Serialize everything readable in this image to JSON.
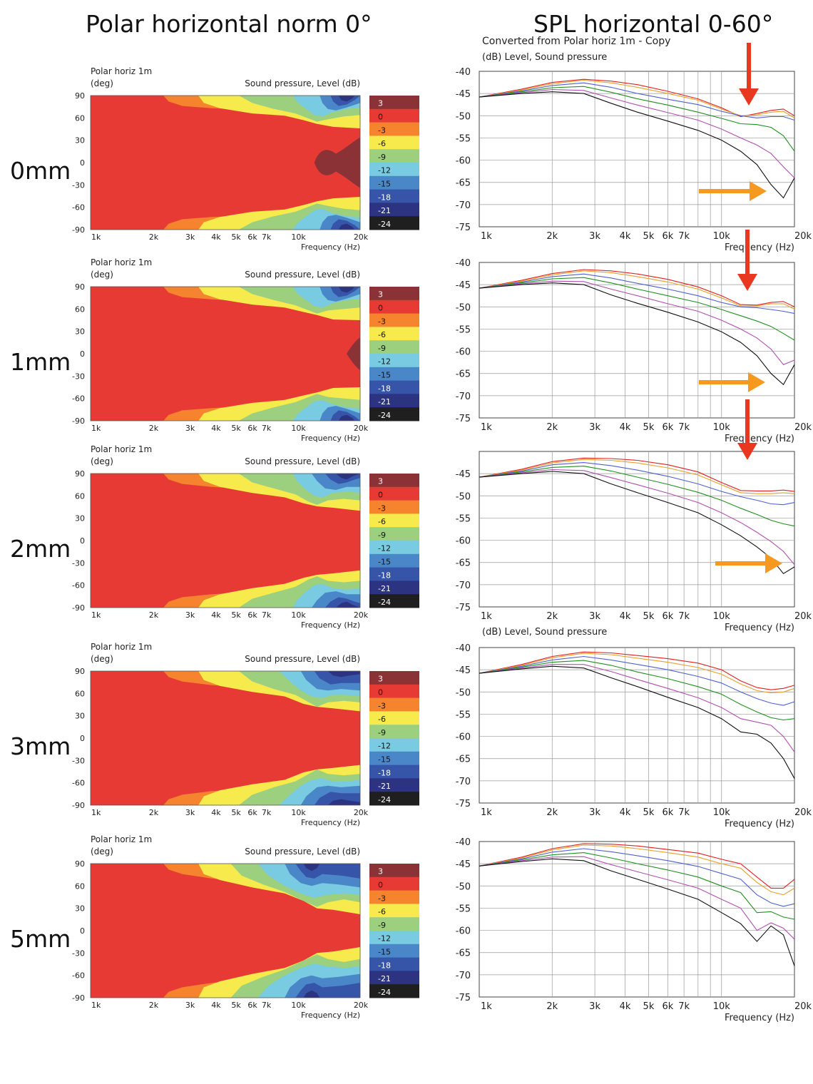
{
  "headings": {
    "left": "Polar horizontal norm 0°",
    "right": "SPL horizontal 0-60°"
  },
  "colorbar": {
    "levels": [
      "3",
      "0",
      "-3",
      "-6",
      "-9",
      "-12",
      "-15",
      "-18",
      "-21",
      "-24"
    ],
    "colors": [
      "#8b3236",
      "#e83a35",
      "#f6842e",
      "#f7ea4c",
      "#9ccf7e",
      "#78cbe0",
      "#4a87c8",
      "#3654a8",
      "#2c3380",
      "#1f1f1f"
    ]
  },
  "polar_common": {
    "title": "Polar horiz 1m",
    "unit": "(deg)",
    "legend": "Sound pressure, Level  (dB)",
    "xlabel": "Frequency  (Hz)"
  },
  "spl_common": {
    "xlabel": "Frequency  (Hz)"
  },
  "spl_header_row1": {
    "title": "Converted from Polar horiz 1m - Copy",
    "unit": "(dB)  Level, Sound pressure"
  },
  "spl_header_row4": {
    "unit": "(dB)  Level, Sound pressure"
  },
  "series_colors": [
    "#e02020",
    "#e8a028",
    "#5060d0",
    "#209020",
    "#b050b0",
    "#101010"
  ],
  "arrow_colors": {
    "vertical": "#e8381f",
    "horizontal": "#f59a1f"
  },
  "chart_data": [
    {
      "type": "heatmap",
      "row": "0mm",
      "yticks": [
        "90",
        "60",
        "30",
        "0",
        "-30",
        "-60",
        "-90"
      ],
      "xticks": [
        "1k",
        "2k",
        "3k",
        "4k",
        "5k",
        "6k",
        "7k",
        "10k",
        "20k"
      ],
      "z_levels": [
        3,
        0,
        -3,
        -6,
        -9,
        -12,
        -15,
        -18,
        -21,
        -24
      ]
    },
    {
      "type": "line",
      "row": "0mm",
      "title": "Converted from Polar horiz 1m - Copy",
      "ylabel": "(dB)  Level, Sound pressure",
      "xlabel": "Frequency  (Hz)",
      "ylim": [
        -75,
        -40
      ],
      "yticks": [
        "-40",
        "-45",
        "-50",
        "-55",
        "-60",
        "-65",
        "-70",
        "-75"
      ],
      "xticks": [
        "1k",
        "2k",
        "3k",
        "4k",
        "5k",
        "6k",
        "7k",
        "10k",
        "20k"
      ],
      "x": [
        1000,
        1500,
        2000,
        2700,
        3500,
        4500,
        6000,
        8000,
        10000,
        12000,
        14000,
        16000,
        18000,
        20000
      ],
      "series": [
        {
          "values": [
            -45.8,
            -44.0,
            -42.5,
            -41.8,
            -42.2,
            -43.0,
            -44.5,
            -46.2,
            -48.2,
            -50.2,
            -49.5,
            -48.8,
            -48.5,
            -50.0
          ]
        },
        {
          "values": [
            -45.8,
            -44.2,
            -42.8,
            -42.0,
            -42.6,
            -43.6,
            -45.0,
            -46.5,
            -48.5,
            -50.0,
            -49.8,
            -49.2,
            -49.0,
            -50.5
          ]
        },
        {
          "values": [
            -45.8,
            -44.4,
            -43.2,
            -42.6,
            -43.6,
            -45.0,
            -46.3,
            -47.5,
            -49.0,
            -50.0,
            -50.5,
            -50.2,
            -50.2,
            -51.0
          ]
        },
        {
          "values": [
            -45.8,
            -44.6,
            -43.7,
            -43.4,
            -44.7,
            -46.2,
            -47.6,
            -49.2,
            -50.6,
            -51.8,
            -52.0,
            -52.6,
            -54.5,
            -58.0
          ]
        },
        {
          "values": [
            -45.8,
            -44.8,
            -44.1,
            -44.3,
            -46.0,
            -47.6,
            -49.3,
            -51.0,
            -53.0,
            -55.0,
            -56.6,
            -58.5,
            -61.5,
            -64.0
          ]
        },
        {
          "values": [
            -45.8,
            -45.0,
            -44.6,
            -45.0,
            -47.2,
            -49.2,
            -51.2,
            -53.3,
            -55.5,
            -58.0,
            -61.0,
            -65.5,
            -68.5,
            -64.0
          ]
        }
      ]
    },
    {
      "type": "heatmap",
      "row": "1mm",
      "yticks": [
        "90",
        "60",
        "30",
        "0",
        "-30",
        "-60",
        "-90"
      ],
      "xticks": [
        "1k",
        "2k",
        "3k",
        "4k",
        "5k",
        "6k",
        "7k",
        "10k",
        "20k"
      ],
      "z_levels": [
        3,
        0,
        -3,
        -6,
        -9,
        -12,
        -15,
        -18,
        -21,
        -24
      ]
    },
    {
      "type": "line",
      "row": "1mm",
      "xlabel": "Frequency  (Hz)",
      "ylim": [
        -75,
        -40
      ],
      "yticks": [
        "-40",
        "-45",
        "-50",
        "-55",
        "-60",
        "-65",
        "-70",
        "-75"
      ],
      "xticks": [
        "1k",
        "2k",
        "3k",
        "4k",
        "5k",
        "6k",
        "7k",
        "10k",
        "20k"
      ],
      "x": [
        1000,
        1500,
        2000,
        2700,
        3500,
        4500,
        6000,
        8000,
        10000,
        12000,
        14000,
        16000,
        18000,
        20000
      ],
      "series": [
        {
          "values": [
            -45.8,
            -44.0,
            -42.5,
            -41.6,
            -41.9,
            -42.6,
            -43.8,
            -45.5,
            -47.5,
            -49.5,
            -49.6,
            -49.0,
            -48.8,
            -50.0
          ]
        },
        {
          "values": [
            -45.8,
            -44.2,
            -42.8,
            -41.9,
            -42.3,
            -43.2,
            -44.4,
            -46.0,
            -48.0,
            -49.8,
            -49.8,
            -49.3,
            -49.3,
            -50.5
          ]
        },
        {
          "values": [
            -45.8,
            -44.4,
            -43.2,
            -42.6,
            -43.5,
            -44.7,
            -46.0,
            -47.5,
            -49.0,
            -50.0,
            -50.2,
            -50.6,
            -51.0,
            -51.5
          ]
        },
        {
          "values": [
            -45.8,
            -44.6,
            -43.7,
            -43.4,
            -44.6,
            -46.0,
            -47.5,
            -49.0,
            -50.6,
            -52.0,
            -53.2,
            -54.4,
            -56.0,
            -57.5
          ]
        },
        {
          "values": [
            -45.8,
            -44.8,
            -44.2,
            -44.3,
            -46.0,
            -47.5,
            -49.3,
            -51.0,
            -53.0,
            -55.0,
            -57.0,
            -59.5,
            -63.0,
            -62.0
          ]
        },
        {
          "values": [
            -45.8,
            -45.0,
            -44.6,
            -45.0,
            -47.3,
            -49.2,
            -51.2,
            -53.4,
            -55.6,
            -58.0,
            -61.0,
            -65.0,
            -67.5,
            -63.0
          ]
        }
      ]
    },
    {
      "type": "heatmap",
      "row": "2mm",
      "yticks": [
        "90",
        "60",
        "30",
        "0",
        "-30",
        "-60",
        "-90"
      ],
      "xticks": [
        "1k",
        "2k",
        "3k",
        "4k",
        "5k",
        "6k",
        "7k",
        "10k",
        "20k"
      ],
      "z_levels": [
        3,
        0,
        -3,
        -6,
        -9,
        -12,
        -15,
        -18,
        -21,
        -24
      ]
    },
    {
      "type": "line",
      "row": "2mm",
      "xlabel": "Frequency  (Hz)",
      "ylim": [
        -75,
        -40
      ],
      "yticks": [
        "-45",
        "-50",
        "-55",
        "-60",
        "-65",
        "-70",
        "-75"
      ],
      "xticks": [
        "1k",
        "2k",
        "3k",
        "4k",
        "5k",
        "6k",
        "7k",
        "10k",
        "20k"
      ],
      "x": [
        1000,
        1500,
        2000,
        2700,
        3500,
        4500,
        6000,
        8000,
        10000,
        12000,
        14000,
        16000,
        18000,
        20000
      ],
      "series": [
        {
          "values": [
            -45.8,
            -44.0,
            -42.3,
            -41.5,
            -41.6,
            -42.0,
            -43.0,
            -44.6,
            -47.0,
            -48.8,
            -48.9,
            -48.9,
            -48.7,
            -49.0
          ]
        },
        {
          "values": [
            -45.8,
            -44.2,
            -42.6,
            -41.8,
            -42.0,
            -42.6,
            -43.7,
            -45.3,
            -47.5,
            -49.3,
            -49.5,
            -49.5,
            -49.3,
            -49.5
          ]
        },
        {
          "values": [
            -45.8,
            -44.4,
            -43.0,
            -42.5,
            -43.2,
            -44.2,
            -45.6,
            -47.3,
            -49.0,
            -50.2,
            -51.0,
            -51.8,
            -52.0,
            -51.5
          ]
        },
        {
          "values": [
            -45.8,
            -44.6,
            -43.6,
            -43.3,
            -44.4,
            -45.8,
            -47.4,
            -49.2,
            -51.0,
            -52.8,
            -54.2,
            -55.5,
            -56.3,
            -56.8
          ]
        },
        {
          "values": [
            -45.8,
            -44.8,
            -44.1,
            -44.3,
            -45.9,
            -47.5,
            -49.4,
            -51.5,
            -53.8,
            -56.0,
            -58.2,
            -60.3,
            -62.5,
            -65.5
          ]
        },
        {
          "values": [
            -45.8,
            -45.0,
            -44.5,
            -45.0,
            -47.3,
            -49.3,
            -51.5,
            -53.8,
            -56.5,
            -59.0,
            -61.5,
            -64.0,
            -67.5,
            -66.0
          ]
        }
      ]
    },
    {
      "type": "heatmap",
      "row": "3mm",
      "yticks": [
        "90",
        "60",
        "30",
        "0",
        "-30",
        "-60",
        "-90"
      ],
      "xticks": [
        "1k",
        "2k",
        "3k",
        "4k",
        "5k",
        "6k",
        "7k",
        "10k",
        "20k"
      ],
      "z_levels": [
        3,
        0,
        -3,
        -6,
        -9,
        -12,
        -15,
        -18,
        -21,
        -24
      ]
    },
    {
      "type": "line",
      "row": "3mm",
      "ylabel": "(dB)  Level, Sound pressure",
      "xlabel": "Frequency  (Hz)",
      "ylim": [
        -75,
        -40
      ],
      "yticks": [
        "-40",
        "-45",
        "-50",
        "-55",
        "-60",
        "-65",
        "-70",
        "-75"
      ],
      "xticks": [
        "1k",
        "2k",
        "3k",
        "4k",
        "5k",
        "6k",
        "7k",
        "10k",
        "20k"
      ],
      "x": [
        1000,
        1500,
        2000,
        2700,
        3500,
        4500,
        6000,
        8000,
        10000,
        12000,
        14000,
        16000,
        18000,
        20000
      ],
      "series": [
        {
          "values": [
            -45.8,
            -43.8,
            -42.0,
            -41.0,
            -41.2,
            -41.8,
            -42.5,
            -43.5,
            -45.0,
            -47.5,
            -49.0,
            -49.5,
            -49.2,
            -48.5
          ]
        },
        {
          "values": [
            -45.8,
            -44.0,
            -42.3,
            -41.3,
            -41.6,
            -42.4,
            -43.3,
            -44.5,
            -46.0,
            -48.2,
            -49.7,
            -50.2,
            -50.0,
            -49.2
          ]
        },
        {
          "values": [
            -45.8,
            -44.2,
            -42.8,
            -42.0,
            -42.8,
            -43.8,
            -45.0,
            -46.5,
            -48.0,
            -50.0,
            -51.5,
            -52.5,
            -53.0,
            -52.2
          ]
        },
        {
          "values": [
            -45.8,
            -44.4,
            -43.3,
            -42.9,
            -44.0,
            -45.5,
            -47.0,
            -48.8,
            -50.5,
            -52.8,
            -54.5,
            -55.8,
            -56.3,
            -56.0
          ]
        },
        {
          "values": [
            -45.8,
            -44.6,
            -43.8,
            -43.8,
            -45.4,
            -47.2,
            -49.2,
            -51.3,
            -53.5,
            -56.0,
            -56.8,
            -57.5,
            -60.0,
            -63.5
          ]
        },
        {
          "values": [
            -45.8,
            -44.8,
            -44.2,
            -44.6,
            -46.8,
            -48.8,
            -51.2,
            -53.5,
            -56.0,
            -59.0,
            -59.5,
            -61.5,
            -65.0,
            -69.5
          ]
        }
      ]
    },
    {
      "type": "heatmap",
      "row": "5mm",
      "yticks": [
        "90",
        "60",
        "30",
        "0",
        "-30",
        "-60",
        "-90"
      ],
      "xticks": [
        "1k",
        "2k",
        "3k",
        "4k",
        "5k",
        "6k",
        "7k",
        "10k",
        "20k"
      ],
      "z_levels": [
        3,
        0,
        -3,
        -6,
        -9,
        -12,
        -15,
        -18,
        -21,
        -24
      ]
    },
    {
      "type": "line",
      "row": "5mm",
      "xlabel": "Frequency  (Hz)",
      "ylim": [
        -75,
        -40
      ],
      "yticks": [
        "-40",
        "-45",
        "-50",
        "-55",
        "-60",
        "-65",
        "-70",
        "-75"
      ],
      "xticks": [
        "1k",
        "2k",
        "3k",
        "4k",
        "5k",
        "6k",
        "7k",
        "10k",
        "20k"
      ],
      "x": [
        1000,
        1500,
        2000,
        2700,
        3500,
        4500,
        6000,
        8000,
        10000,
        12000,
        14000,
        16000,
        18000,
        20000
      ],
      "series": [
        {
          "values": [
            -45.5,
            -43.5,
            -41.6,
            -40.5,
            -40.6,
            -41.0,
            -41.8,
            -42.6,
            -44.0,
            -45.0,
            -48.0,
            -50.5,
            -50.5,
            -48.5
          ]
        },
        {
          "values": [
            -45.5,
            -43.7,
            -41.9,
            -40.8,
            -41.0,
            -41.6,
            -42.5,
            -43.5,
            -45.0,
            -46.0,
            -49.2,
            -51.3,
            -52.0,
            -50.5
          ]
        },
        {
          "values": [
            -45.5,
            -43.9,
            -42.4,
            -41.6,
            -42.3,
            -43.2,
            -44.3,
            -45.6,
            -47.2,
            -48.5,
            -52.0,
            -53.8,
            -54.6,
            -54.0
          ]
        },
        {
          "values": [
            -45.5,
            -44.1,
            -43.0,
            -42.5,
            -43.7,
            -45.0,
            -46.4,
            -48.0,
            -50.0,
            -51.5,
            -56.0,
            -55.8,
            -57.0,
            -57.5
          ]
        },
        {
          "values": [
            -45.5,
            -44.3,
            -43.5,
            -43.4,
            -45.2,
            -46.8,
            -48.6,
            -50.5,
            -53.0,
            -55.0,
            -60.0,
            -58.3,
            -59.5,
            -62.0
          ]
        },
        {
          "values": [
            -45.5,
            -44.5,
            -43.9,
            -44.3,
            -46.6,
            -48.5,
            -50.7,
            -53.0,
            -56.0,
            -58.5,
            -62.5,
            -59.0,
            -61.0,
            -68.0
          ]
        }
      ]
    }
  ],
  "rows": [
    {
      "label": "0mm",
      "polar_top": 90,
      "spl_top": 60,
      "show_polar_header": true,
      "spl_header": "row1"
    },
    {
      "label": "1mm",
      "polar_top": 358,
      "spl_top": 328,
      "show_polar_header": true
    },
    {
      "label": "2mm",
      "polar_top": 620,
      "spl_top": 593,
      "show_polar_header": true
    },
    {
      "label": "3mm",
      "polar_top": 897,
      "spl_top": 868,
      "show_polar_header": true,
      "spl_header": "row4"
    },
    {
      "label": "5mm",
      "polar_top": 1167,
      "spl_top": 1140,
      "show_polar_header": true
    }
  ]
}
